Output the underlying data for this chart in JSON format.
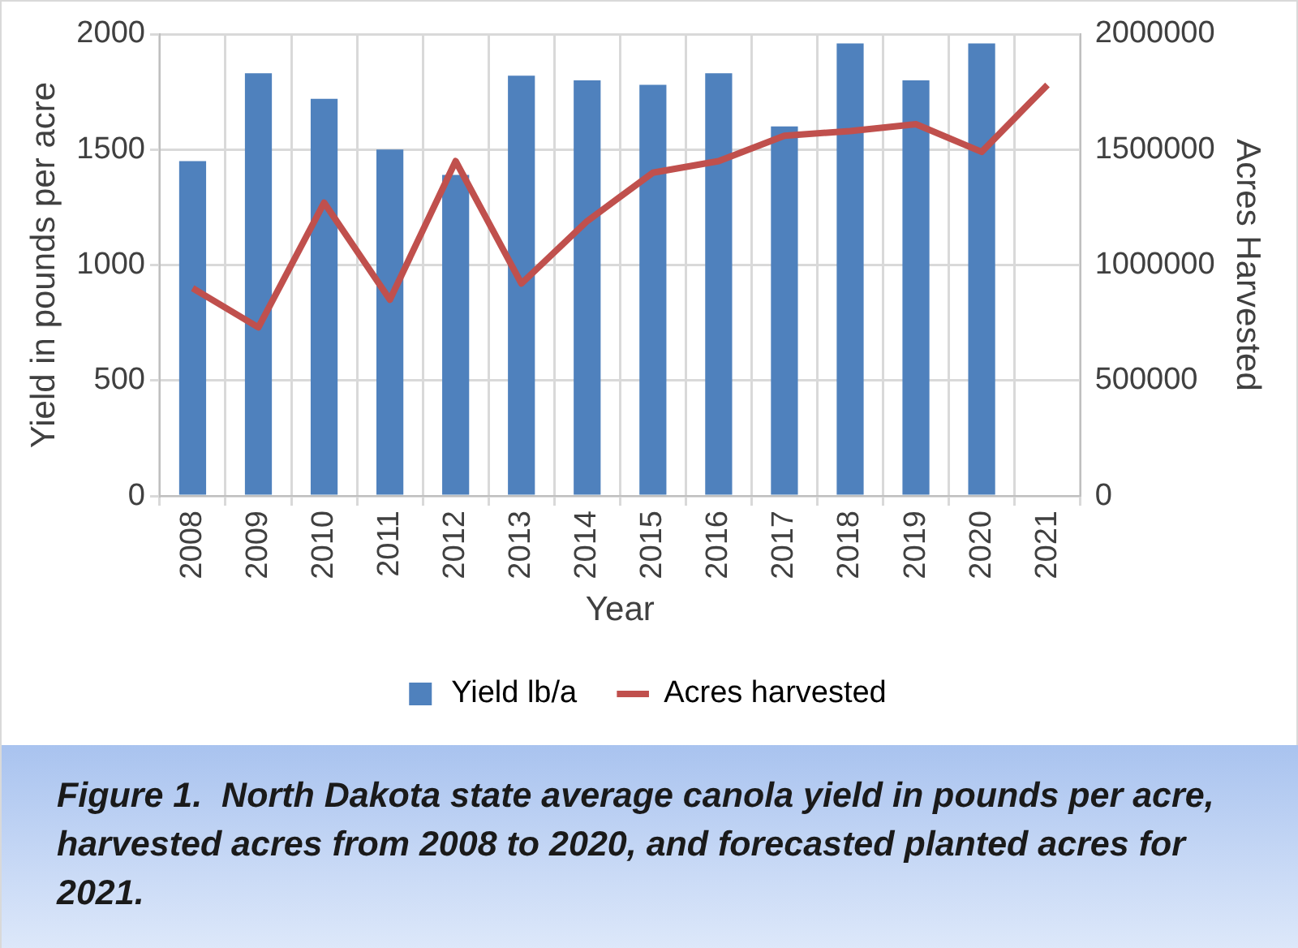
{
  "chart_data": {
    "type": "bar",
    "xlabel": "Year",
    "ylabel": "Yield in pounds per acre",
    "y2label": "Acres Harvested",
    "categories": [
      "2008",
      "2009",
      "2010",
      "2011",
      "2012",
      "2013",
      "2014",
      "2015",
      "2016",
      "2017",
      "2018",
      "2019",
      "2020",
      "2021"
    ],
    "series": [
      {
        "name": "Yield lb/a",
        "color": "#4f81bd",
        "values": [
          1450,
          1830,
          1720,
          1500,
          1390,
          1820,
          1800,
          1780,
          1830,
          1600,
          1960,
          1800,
          1960,
          null
        ]
      },
      {
        "name": "Acres harvested",
        "type": "line",
        "axis": "y2",
        "color": "#c0504d",
        "marker": "none",
        "values": [
          900000,
          730000,
          1270000,
          850000,
          1450000,
          920000,
          1190000,
          1400000,
          1450000,
          1560000,
          1580000,
          1610000,
          1490000,
          1780000
        ]
      }
    ],
    "ylim": [
      0,
      2000
    ],
    "yticks": [
      0,
      500,
      1000,
      1500,
      2000
    ],
    "y2lim": [
      0,
      2000000
    ],
    "y2ticks": [
      0,
      500000,
      1000000,
      1500000,
      2000000
    ],
    "grid": true,
    "legend": "bottom",
    "annotations": [
      "Figure 1.  North Dakota state average canola yield in pounds per acre, harvested acres from 2008 to 2020, and forecasted planted acres for 2021."
    ]
  }
}
